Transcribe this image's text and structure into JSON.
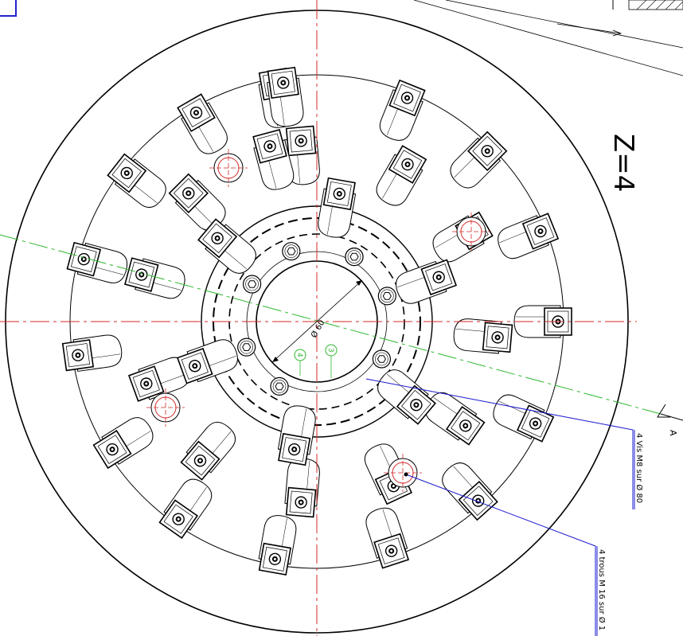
{
  "drawing": {
    "title_label": "Z=4",
    "section_marker": "A",
    "callout_screws": "4 Vis M8 sur Ø 80",
    "callout_holes": "4 trous M 16 sur Ø 1",
    "bore_dimension": "Ø 60",
    "bubble_3": "3",
    "bubble_4": "4"
  },
  "colors": {
    "outline": "#000000",
    "centerline": "#d42a2a",
    "section_line": "#2fb82f",
    "leader": "#1a1ad0",
    "frame": "#2222cc"
  }
}
